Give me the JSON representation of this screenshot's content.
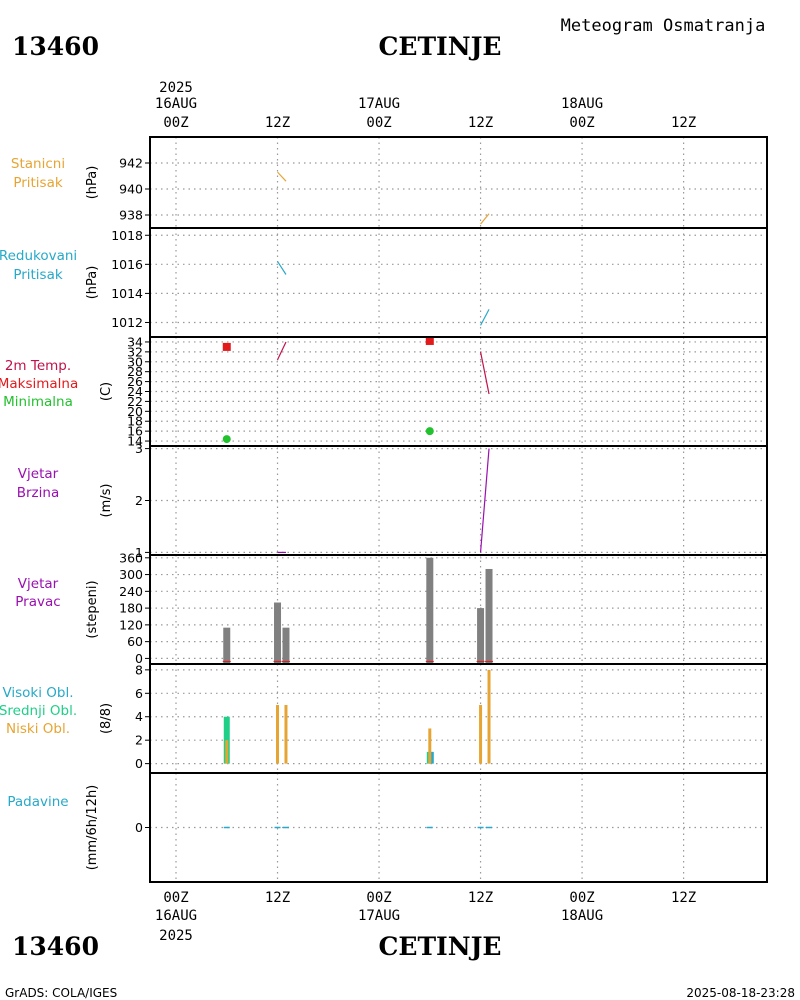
{
  "header": {
    "station_id": "13460",
    "station_name": "CETINJE",
    "title": "Meteogram Osmatranja",
    "footer_left": "GrADS: COLA/IGES",
    "footer_right": "2025-08-18-23:28",
    "year_top": "2025",
    "year_bottom": "2025"
  },
  "time_axis": {
    "labels": [
      {
        "hour": 0,
        "time": "00Z",
        "date": "16AUG"
      },
      {
        "hour": 12,
        "time": "12Z",
        "date": ""
      },
      {
        "hour": 24,
        "time": "00Z",
        "date": "17AUG"
      },
      {
        "hour": 36,
        "time": "12Z",
        "date": ""
      },
      {
        "hour": 48,
        "time": "00Z",
        "date": "18AUG"
      },
      {
        "hour": 60,
        "time": "12Z",
        "date": ""
      }
    ]
  },
  "colors": {
    "pressure": "#e6a533",
    "reduced": "#27a9c9",
    "tmax": "#e31a1c",
    "tmin": "#22c12e",
    "temp_line": "#c1124b",
    "wind": "#9a10b0",
    "dir_bar": "#808080",
    "high_cloud": "#27a9c9",
    "mid_cloud": "#1fcf88",
    "low_cloud": "#e6a533",
    "precip": "#27a9c9"
  },
  "chart_data": [
    {
      "type": "line",
      "name": "station_pressure",
      "labels": [
        "Stanicni",
        "Pritisak"
      ],
      "ylabel": "(hPa)",
      "ylim": [
        937,
        944
      ],
      "yticks": [
        938,
        940,
        942
      ],
      "series": [
        {
          "name": "Stanicni Pritisak",
          "points": [
            [
              12.0,
              941.3
            ],
            [
              13.0,
              940.6
            ]
          ]
        },
        {
          "name": "Stanicni Pritisak 2",
          "points": [
            [
              36.0,
              937.3
            ],
            [
              37.0,
              938.1
            ]
          ]
        }
      ]
    },
    {
      "type": "line",
      "name": "reduced_pressure",
      "labels": [
        "Redukovani",
        "Pritisak"
      ],
      "ylabel": "(hPa)",
      "ylim": [
        1011,
        1018.5
      ],
      "yticks": [
        1012,
        1014,
        1016,
        1018
      ],
      "series": [
        {
          "name": "Redukovani Pritisak",
          "points": [
            [
              12.0,
              1016.2
            ],
            [
              13.0,
              1015.3
            ]
          ]
        },
        {
          "name": "Redukovani Pritisak 2",
          "points": [
            [
              36.0,
              1011.8
            ],
            [
              37.0,
              1012.9
            ]
          ]
        }
      ]
    },
    {
      "type": "scatter",
      "name": "temperature",
      "labels": [
        "2m Temp.",
        "Maksimalna",
        "Minimalna"
      ],
      "ylabel": "(C)",
      "ylim": [
        13,
        35
      ],
      "yticks": [
        14,
        16,
        18,
        20,
        22,
        24,
        26,
        28,
        30,
        32,
        34
      ],
      "tmax": [
        [
          6.0,
          33.0
        ],
        [
          30.0,
          34.2
        ]
      ],
      "tmin": [
        [
          6.0,
          14.4
        ],
        [
          30.0,
          16.0
        ]
      ],
      "lines": [
        {
          "name": "2m Temp.",
          "points": [
            [
              12.0,
              30.4
            ],
            [
              13.0,
              34.0
            ]
          ]
        },
        {
          "name": "2m Temp. 2",
          "points": [
            [
              36.0,
              32.0
            ],
            [
              37.0,
              23.5
            ]
          ]
        }
      ]
    },
    {
      "type": "line",
      "name": "wind_speed",
      "labels": [
        "Vjetar",
        "Brzina"
      ],
      "ylabel": "(m/s)",
      "ylim": [
        0.95,
        3.05
      ],
      "yticks": [
        1,
        2,
        3
      ],
      "series": [
        {
          "name": "Brzina",
          "points": [
            [
              12.0,
              1.0
            ],
            [
              13.0,
              1.0
            ]
          ]
        },
        {
          "name": "Brzina 2",
          "points": [
            [
              36.0,
              1.0
            ],
            [
              37.0,
              3.0
            ]
          ]
        }
      ]
    },
    {
      "type": "bar",
      "name": "wind_direction",
      "labels": [
        "Vjetar",
        "Pravac"
      ],
      "ylabel": "(stepeni)",
      "ylim": [
        -20,
        370
      ],
      "yticks": [
        0,
        60,
        120,
        180,
        240,
        300,
        360
      ],
      "bars": [
        {
          "hour": 6.0,
          "value": 110
        },
        {
          "hour": 12.0,
          "value": 200
        },
        {
          "hour": 13.0,
          "value": 110
        },
        {
          "hour": 30.0,
          "value": 360
        },
        {
          "hour": 36.0,
          "value": 180
        },
        {
          "hour": 37.0,
          "value": 320
        }
      ]
    },
    {
      "type": "bar",
      "name": "cloud_cover",
      "labels": [
        "Visoki Obl.",
        "Srednji Obl.",
        "Niski Obl."
      ],
      "ylabel": "(8/8)",
      "ylim": [
        -0.8,
        8.5
      ],
      "yticks": [
        0,
        2,
        4,
        6,
        8
      ],
      "high": [
        {
          "hour": 30.0,
          "value": 1
        }
      ],
      "mid": [
        {
          "hour": 6.0,
          "value": 4
        },
        {
          "hour": 30.0,
          "value": 1
        }
      ],
      "low": [
        {
          "hour": 6.0,
          "value": 2
        },
        {
          "hour": 12.0,
          "value": 5
        },
        {
          "hour": 13.0,
          "value": 5
        },
        {
          "hour": 30.0,
          "value": 3
        },
        {
          "hour": 36.0,
          "value": 5
        },
        {
          "hour": 37.0,
          "value": 8
        }
      ]
    },
    {
      "type": "line",
      "name": "precipitation",
      "labels": [
        "Padavine"
      ],
      "ylabel": "(mm/6h/12h)",
      "ylim": [
        -5,
        5
      ],
      "yticks": [
        0
      ],
      "series": [
        {
          "name": "Padavine",
          "points": [
            [
              6.0,
              0
            ],
            [
              12.0,
              0
            ],
            [
              13.0,
              0
            ],
            [
              30.0,
              0
            ],
            [
              36.0,
              0
            ],
            [
              37.0,
              0
            ]
          ]
        }
      ]
    }
  ]
}
